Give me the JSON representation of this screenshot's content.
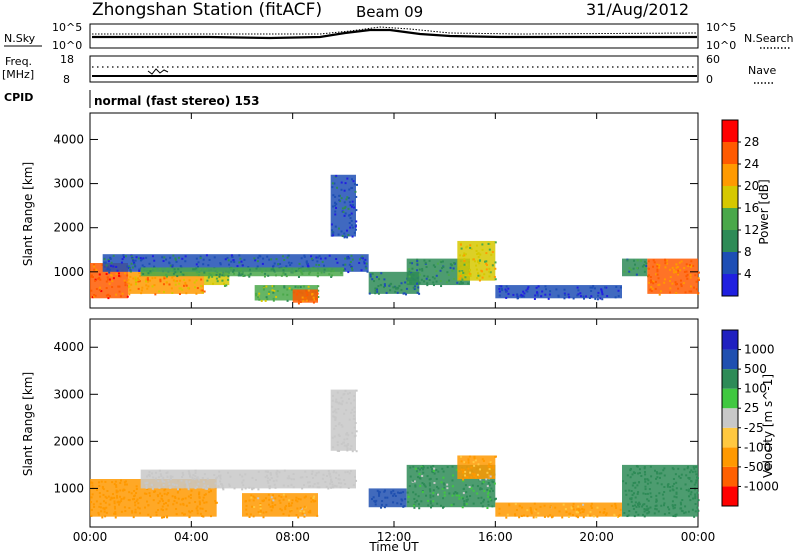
{
  "header": {
    "station": "Zhongshan Station (fitACF)",
    "beam": "Beam 09",
    "date": "31/Aug/2012"
  },
  "noise_panel": {
    "left_label": "N.Sky",
    "right_label": "N.Search",
    "left_ticks": [
      "10^5",
      "10^0"
    ],
    "right_ticks": [
      "10^5",
      "10^0"
    ]
  },
  "freq_panel": {
    "left_label_1": "Freq.",
    "left_label_2": "[MHz]",
    "left_ticks": [
      "18",
      "8"
    ],
    "right_label": "Nave",
    "right_ticks": [
      "60",
      "0"
    ],
    "cpid_label": "CPID",
    "cpid_text": "normal (fast stereo) 153"
  },
  "colors": {
    "power_scale": [
      "#2020e0",
      "#1e4fb5",
      "#2e8b57",
      "#4aa84a",
      "#d6c800",
      "#ff9a00",
      "#ff5a00",
      "#ff0000"
    ],
    "velocity_scale": [
      "#ff0000",
      "#ff6000",
      "#ff9900",
      "#ffc840",
      "#c8c8c8",
      "#40c840",
      "#2e8b57",
      "#2050b0",
      "#2020c0"
    ]
  },
  "chart_data": [
    {
      "type": "heatmap",
      "title": "",
      "xlabel": "Time UT",
      "ylabel": "Slant Range [km]",
      "xlim": [
        "00:00",
        "24:00"
      ],
      "ylim": [
        180,
        4600
      ],
      "x_ticks": [
        "00:00",
        "04:00",
        "08:00",
        "12:00",
        "16:00",
        "20:00",
        "00:00"
      ],
      "y_ticks": [
        "1000",
        "2000",
        "3000",
        "4000"
      ],
      "colorbar_label": "Power [dB]",
      "colorbar_ticks": [
        "4",
        "8",
        "12",
        "16",
        "20",
        "24",
        "28"
      ],
      "cells": [
        {
          "x": 0.0,
          "x2": 1.5,
          "y": 400,
          "y2": 1200,
          "value": 28
        },
        {
          "x": 1.5,
          "x2": 4.5,
          "y": 500,
          "y2": 1000,
          "value": 24
        },
        {
          "x": 4.5,
          "x2": 5.5,
          "y": 700,
          "y2": 1000,
          "value": 18
        },
        {
          "x": 0.5,
          "x2": 11.0,
          "y": 1000,
          "y2": 1400,
          "value": 8
        },
        {
          "x": 2.0,
          "x2": 10.0,
          "y": 900,
          "y2": 1100,
          "value": 14
        },
        {
          "x": 6.5,
          "x2": 9.0,
          "y": 350,
          "y2": 700,
          "value": 16
        },
        {
          "x": 8.0,
          "x2": 9.0,
          "y": 300,
          "y2": 600,
          "value": 26
        },
        {
          "x": 9.5,
          "x2": 10.5,
          "y": 1800,
          "y2": 3200,
          "value": 8
        },
        {
          "x": 11.0,
          "x2": 13.0,
          "y": 500,
          "y2": 1000,
          "value": 10
        },
        {
          "x": 12.5,
          "x2": 15.0,
          "y": 700,
          "y2": 1300,
          "value": 12
        },
        {
          "x": 14.5,
          "x2": 16.0,
          "y": 800,
          "y2": 1700,
          "value": 20
        },
        {
          "x": 16.0,
          "x2": 21.0,
          "y": 400,
          "y2": 700,
          "value": 6
        },
        {
          "x": 21.0,
          "x2": 22.0,
          "y": 900,
          "y2": 1300,
          "value": 12
        },
        {
          "x": 22.0,
          "x2": 24.0,
          "y": 500,
          "y2": 1300,
          "value": 26
        }
      ]
    },
    {
      "type": "heatmap",
      "title": "",
      "xlabel": "Time UT",
      "ylabel": "Slant Range [km]",
      "xlim": [
        "00:00",
        "24:00"
      ],
      "ylim": [
        180,
        4600
      ],
      "x_ticks": [
        "00:00",
        "04:00",
        "08:00",
        "12:00",
        "16:00",
        "20:00",
        "00:00"
      ],
      "y_ticks": [
        "1000",
        "2000",
        "3000",
        "4000"
      ],
      "colorbar_label": "Velocity [m s^-1]",
      "colorbar_ticks": [
        "1000",
        "500",
        "100",
        "25",
        "-25",
        "-100",
        "-500",
        "-1000"
      ],
      "cells": [
        {
          "x": 0.0,
          "x2": 5.0,
          "y": 400,
          "y2": 1200,
          "value": -300
        },
        {
          "x": 2.0,
          "x2": 10.5,
          "y": 1000,
          "y2": 1400,
          "value": 0
        },
        {
          "x": 6.0,
          "x2": 9.0,
          "y": 400,
          "y2": 900,
          "value": -200
        },
        {
          "x": 9.5,
          "x2": 10.5,
          "y": 1800,
          "y2": 3100,
          "value": 0
        },
        {
          "x": 11.0,
          "x2": 12.5,
          "y": 600,
          "y2": 1000,
          "value": 700
        },
        {
          "x": 12.5,
          "x2": 16.0,
          "y": 600,
          "y2": 1500,
          "value": 200
        },
        {
          "x": 14.5,
          "x2": 16.0,
          "y": 1200,
          "y2": 1700,
          "value": -200
        },
        {
          "x": 16.0,
          "x2": 21.0,
          "y": 400,
          "y2": 700,
          "value": -200
        },
        {
          "x": 21.0,
          "x2": 24.0,
          "y": 400,
          "y2": 1500,
          "value": 300
        }
      ]
    }
  ]
}
